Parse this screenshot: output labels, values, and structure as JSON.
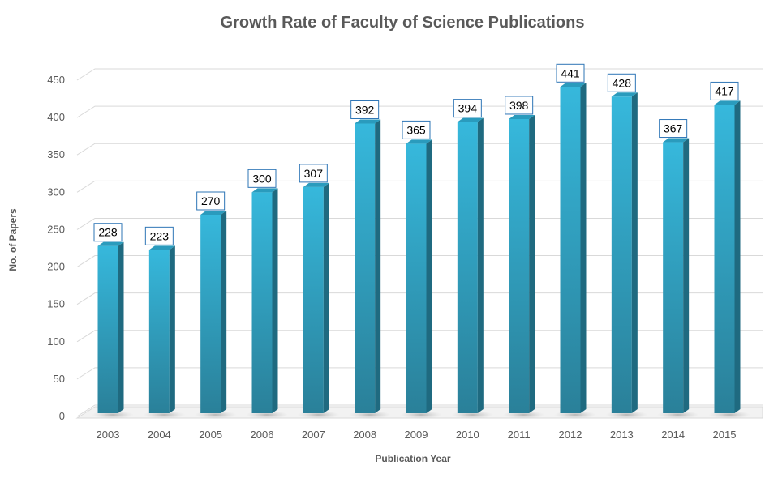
{
  "chart_data": {
    "type": "bar",
    "title": "Growth Rate of Faculty of Science Publications",
    "xlabel": "Publication Year",
    "ylabel": "No. of Papers",
    "categories": [
      "2003",
      "2004",
      "2005",
      "2006",
      "2007",
      "2008",
      "2009",
      "2010",
      "2011",
      "2012",
      "2013",
      "2014",
      "2015"
    ],
    "values": [
      228,
      223,
      270,
      300,
      307,
      392,
      365,
      394,
      398,
      441,
      428,
      367,
      417
    ],
    "ylim": [
      0,
      450
    ],
    "yticks": [
      0,
      50,
      100,
      150,
      200,
      250,
      300,
      350,
      400,
      450
    ],
    "grid": true,
    "style": "3d-column",
    "colors": {
      "front_top": "#35b6da",
      "front_bottom": "#2a849c",
      "side": "#1f6a80",
      "top": "#2a9bbd",
      "label_border": "#2e75b6"
    },
    "data_labels": true
  }
}
